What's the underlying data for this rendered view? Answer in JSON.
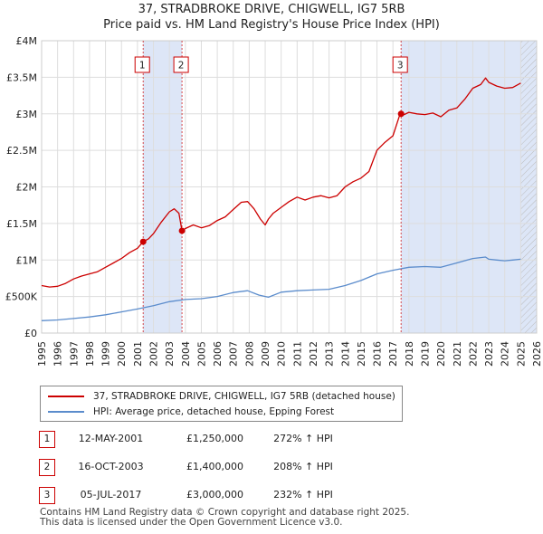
{
  "chart_data": {
    "type": "line",
    "title": "37, STRADBROKE DRIVE, CHIGWELL, IG7 5RB",
    "subtitle": "Price paid vs. HM Land Registry's House Price Index (HPI)",
    "xlabel": "",
    "ylabel": "",
    "xlim": [
      1995,
      2026
    ],
    "ylim": [
      0,
      4000000
    ],
    "y_ticks": [
      {
        "value": 0,
        "label": "£0"
      },
      {
        "value": 500000,
        "label": "£500K"
      },
      {
        "value": 1000000,
        "label": "£1M"
      },
      {
        "value": 1500000,
        "label": "£1.5M"
      },
      {
        "value": 2000000,
        "label": "£2M"
      },
      {
        "value": 2500000,
        "label": "£2.5M"
      },
      {
        "value": 3000000,
        "label": "£3M"
      },
      {
        "value": 3500000,
        "label": "£3.5M"
      },
      {
        "value": 4000000,
        "label": "£4M"
      }
    ],
    "x_ticks": [
      "1995",
      "1996",
      "1997",
      "1998",
      "1999",
      "2000",
      "2001",
      "2002",
      "2003",
      "2004",
      "2005",
      "2006",
      "2007",
      "2008",
      "2009",
      "2010",
      "2011",
      "2012",
      "2013",
      "2014",
      "2015",
      "2016",
      "2017",
      "2018",
      "2019",
      "2020",
      "2021",
      "2022",
      "2023",
      "2024",
      "2025",
      "2026"
    ],
    "grid": true,
    "series": [
      {
        "name": "37, STRADBROKE DRIVE, CHIGWELL, IG7 5RB (detached house)",
        "color": "#cc0000",
        "x": [
          1995,
          1995.5,
          1996,
          1996.5,
          1997,
          1997.5,
          1998,
          1998.5,
          1999,
          1999.5,
          2000,
          2000.5,
          2001,
          2001.36,
          2001.7,
          2002,
          2002.5,
          2003,
          2003.3,
          2003.6,
          2003.79,
          2004,
          2004.5,
          2005,
          2005.5,
          2006,
          2006.5,
          2007,
          2007.5,
          2007.9,
          2008.3,
          2008.7,
          2009,
          2009.2,
          2009.5,
          2010,
          2010.5,
          2011,
          2011.5,
          2012,
          2012.5,
          2013,
          2013.5,
          2014,
          2014.5,
          2015,
          2015.5,
          2016,
          2016.5,
          2017,
          2017.45,
          2017.7,
          2018,
          2018.5,
          2019,
          2019.5,
          2020,
          2020.5,
          2021,
          2021.5,
          2022,
          2022.5,
          2022.8,
          2023,
          2023.5,
          2024,
          2024.5,
          2025
        ],
        "y": [
          650000,
          630000,
          640000,
          680000,
          740000,
          780000,
          810000,
          840000,
          900000,
          960000,
          1020000,
          1100000,
          1160000,
          1250000,
          1290000,
          1360000,
          1520000,
          1660000,
          1700000,
          1640000,
          1400000,
          1430000,
          1480000,
          1440000,
          1470000,
          1540000,
          1590000,
          1690000,
          1790000,
          1800000,
          1700000,
          1560000,
          1480000,
          1560000,
          1640000,
          1720000,
          1800000,
          1860000,
          1820000,
          1860000,
          1880000,
          1850000,
          1880000,
          2000000,
          2070000,
          2120000,
          2210000,
          2500000,
          2610000,
          2700000,
          3000000,
          2990000,
          3020000,
          3000000,
          2990000,
          3010000,
          2960000,
          3050000,
          3080000,
          3200000,
          3350000,
          3400000,
          3490000,
          3430000,
          3380000,
          3350000,
          3360000,
          3420000
        ]
      },
      {
        "name": "HPI: Average price, detached house, Epping Forest",
        "color": "#5b8ccc",
        "x": [
          1995,
          1996,
          1997,
          1998,
          1999,
          2000,
          2001,
          2002,
          2003,
          2004,
          2005,
          2006,
          2007,
          2007.9,
          2008.6,
          2009.2,
          2010,
          2011,
          2012,
          2013,
          2014,
          2015,
          2016,
          2017,
          2018,
          2019,
          2020,
          2021,
          2022,
          2022.8,
          2023,
          2023.5,
          2024,
          2024.5,
          2025
        ],
        "y": [
          170000,
          180000,
          200000,
          220000,
          250000,
          290000,
          330000,
          375000,
          430000,
          460000,
          470000,
          500000,
          555000,
          580000,
          520000,
          490000,
          560000,
          580000,
          590000,
          600000,
          650000,
          720000,
          810000,
          860000,
          900000,
          910000,
          900000,
          960000,
          1020000,
          1040000,
          1010000,
          1000000,
          990000,
          1000000,
          1010000
        ]
      }
    ],
    "transactions": [
      {
        "marker": "1",
        "x": 2001.36,
        "y": 1250000,
        "date": "12-MAY-2001",
        "price": "£1,250,000",
        "hpi": "272% ↑ HPI"
      },
      {
        "marker": "2",
        "x": 2003.79,
        "y": 1400000,
        "date": "16-OCT-2003",
        "price": "£1,400,000",
        "hpi": "208% ↑ HPI"
      },
      {
        "marker": "3",
        "x": 2017.51,
        "y": 3000000,
        "date": "05-JUL-2017",
        "price": "£3,000,000",
        "hpi": "232% ↑ HPI"
      }
    ],
    "shaded_ranges": [
      [
        2001.36,
        2003.79
      ],
      [
        2017.51,
        2026
      ],
      [
        2025.0,
        2026
      ]
    ],
    "legend_position": "bottom"
  },
  "footer": {
    "line1": "Contains HM Land Registry data © Crown copyright and database right 2025.",
    "line2": "This data is licensed under the Open Government Licence v3.0."
  },
  "colors": {
    "property": "#cc0000",
    "hpi": "#5b8ccc",
    "shade": "#dde6f7",
    "grid": "#dddddd",
    "future_hatch": "#bbbbbb"
  }
}
